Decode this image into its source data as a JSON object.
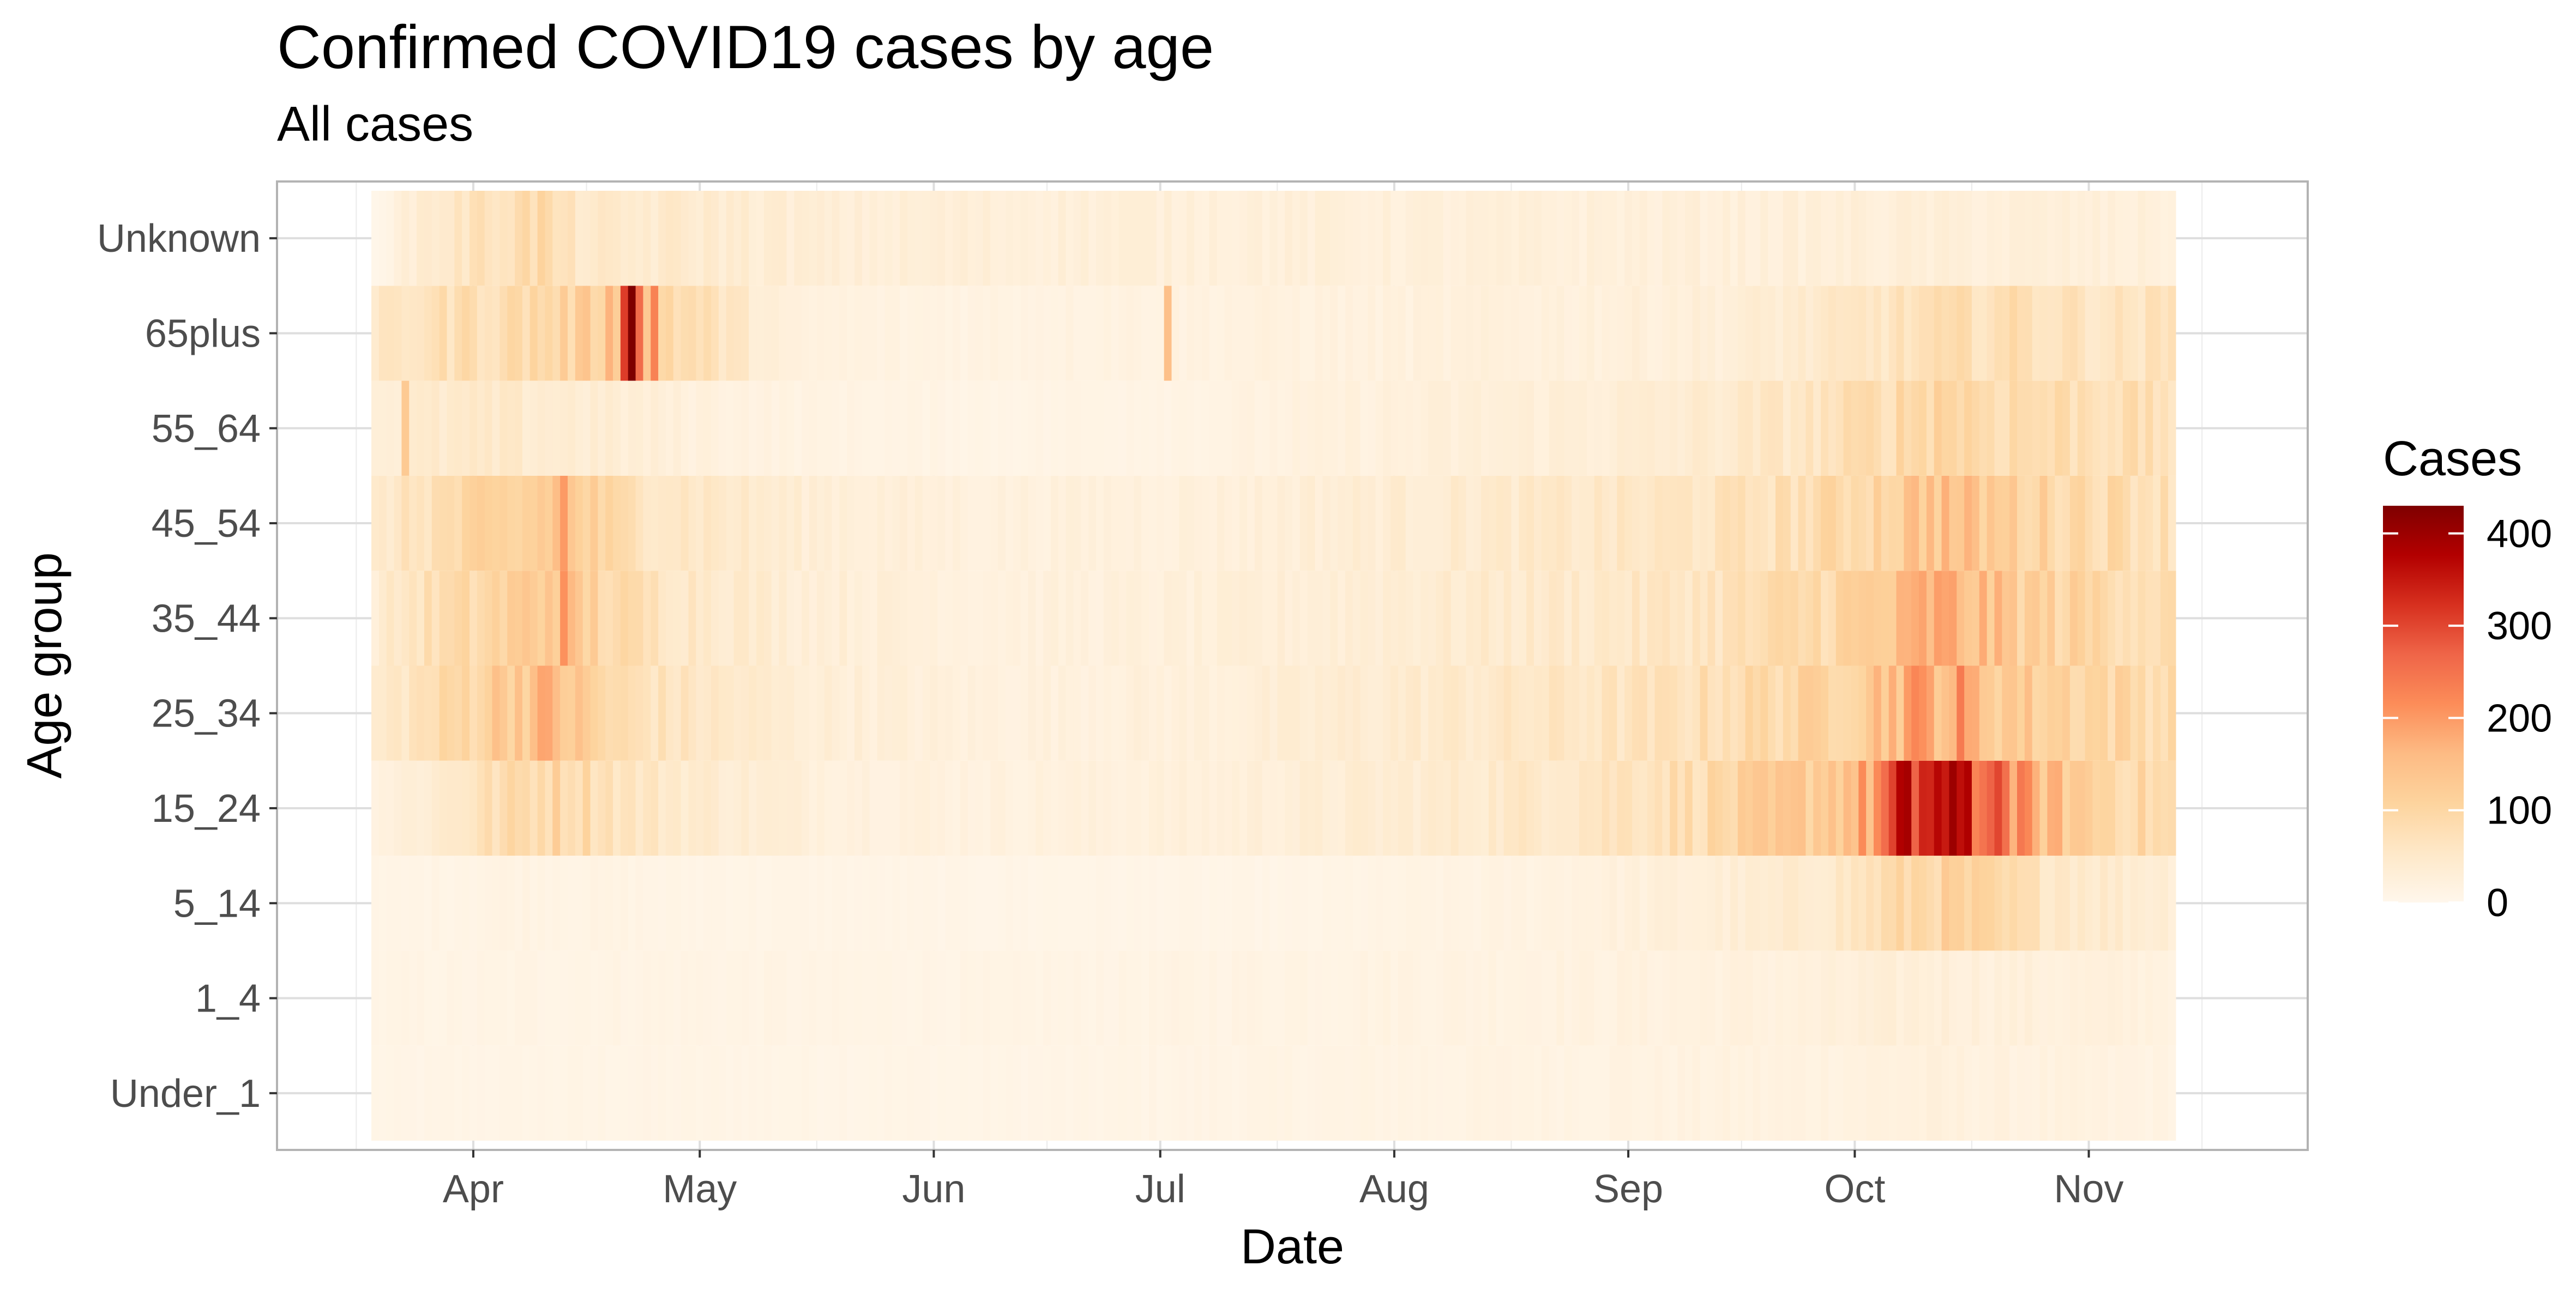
{
  "chart_data": {
    "type": "heatmap",
    "title": "Confirmed COVID19 cases by age",
    "subtitle": "All cases",
    "xlabel": "Date",
    "ylabel": "Age group",
    "x_range": [
      "2020-03-06",
      "2020-11-30"
    ],
    "x_ticks": [
      {
        "date": "2020-04-01",
        "label": "Apr"
      },
      {
        "date": "2020-05-01",
        "label": "May"
      },
      {
        "date": "2020-06-01",
        "label": "Jun"
      },
      {
        "date": "2020-07-01",
        "label": "Jul"
      },
      {
        "date": "2020-08-01",
        "label": "Aug"
      },
      {
        "date": "2020-09-01",
        "label": "Sep"
      },
      {
        "date": "2020-10-01",
        "label": "Oct"
      },
      {
        "date": "2020-11-01",
        "label": "Nov"
      }
    ],
    "age_groups": [
      "Under_1",
      "1_4",
      "5_14",
      "15_24",
      "25_34",
      "35_44",
      "45_54",
      "55_64",
      "65plus",
      "Unknown"
    ],
    "date_range": [
      "2020-03-19",
      "2020-11-12"
    ],
    "grid": true,
    "legend": {
      "title": "Cases",
      "position": "right",
      "ticks": [
        0,
        100,
        200,
        300,
        400
      ],
      "max": 430,
      "colors": [
        "#fff7ec",
        "#fee8c8",
        "#fdd49e",
        "#fdbb84",
        "#fc8d59",
        "#ef6548",
        "#d7301f",
        "#b30000",
        "#7f0000"
      ]
    },
    "profiles": {
      "Unknown": [
        [
          0,
          5
        ],
        [
          6,
          40
        ],
        [
          12,
          60
        ],
        [
          18,
          80
        ],
        [
          22,
          90
        ],
        [
          25,
          60
        ],
        [
          32,
          40
        ],
        [
          40,
          45
        ],
        [
          60,
          30
        ],
        [
          100,
          28
        ],
        [
          150,
          25
        ],
        [
          200,
          28
        ],
        [
          238,
          25
        ]
      ],
      "65plus": [
        [
          0,
          45
        ],
        [
          6,
          70
        ],
        [
          12,
          80
        ],
        [
          18,
          85
        ],
        [
          24,
          100
        ],
        [
          28,
          110
        ],
        [
          32,
          150
        ],
        [
          34,
          160
        ],
        [
          36,
          120
        ],
        [
          40,
          90
        ],
        [
          47,
          55
        ],
        [
          55,
          20
        ],
        [
          70,
          15
        ],
        [
          100,
          18
        ],
        [
          130,
          20
        ],
        [
          160,
          25
        ],
        [
          180,
          30
        ],
        [
          195,
          50
        ],
        [
          205,
          70
        ],
        [
          215,
          80
        ],
        [
          222,
          70
        ],
        [
          230,
          60
        ],
        [
          238,
          65
        ]
      ],
      "55_64": [
        [
          0,
          30
        ],
        [
          6,
          40
        ],
        [
          12,
          45
        ],
        [
          18,
          45
        ],
        [
          24,
          40
        ],
        [
          30,
          35
        ],
        [
          40,
          25
        ],
        [
          55,
          15
        ],
        [
          80,
          10
        ],
        [
          110,
          14
        ],
        [
          140,
          25
        ],
        [
          170,
          35
        ],
        [
          180,
          45
        ],
        [
          190,
          60
        ],
        [
          200,
          85
        ],
        [
          208,
          110
        ],
        [
          213,
          90
        ],
        [
          220,
          85
        ],
        [
          230,
          80
        ],
        [
          238,
          70
        ]
      ],
      "45_54": [
        [
          0,
          40
        ],
        [
          6,
          70
        ],
        [
          12,
          90
        ],
        [
          18,
          100
        ],
        [
          22,
          120
        ],
        [
          24,
          150
        ],
        [
          26,
          130
        ],
        [
          32,
          80
        ],
        [
          40,
          60
        ],
        [
          55,
          35
        ],
        [
          80,
          22
        ],
        [
          110,
          25
        ],
        [
          140,
          40
        ],
        [
          170,
          55
        ],
        [
          180,
          65
        ],
        [
          190,
          80
        ],
        [
          200,
          110
        ],
        [
          206,
          150
        ],
        [
          212,
          130
        ],
        [
          220,
          105
        ],
        [
          230,
          90
        ],
        [
          238,
          75
        ]
      ],
      "35_44": [
        [
          0,
          35
        ],
        [
          6,
          70
        ],
        [
          12,
          85
        ],
        [
          18,
          110
        ],
        [
          22,
          130
        ],
        [
          24,
          160
        ],
        [
          26,
          130
        ],
        [
          32,
          85
        ],
        [
          40,
          60
        ],
        [
          55,
          35
        ],
        [
          80,
          22
        ],
        [
          110,
          25
        ],
        [
          140,
          40
        ],
        [
          170,
          55
        ],
        [
          180,
          70
        ],
        [
          190,
          90
        ],
        [
          200,
          120
        ],
        [
          206,
          170
        ],
        [
          212,
          150
        ],
        [
          220,
          110
        ],
        [
          230,
          95
        ],
        [
          238,
          80
        ]
      ],
      "25_34": [
        [
          0,
          40
        ],
        [
          6,
          70
        ],
        [
          12,
          100
        ],
        [
          18,
          140
        ],
        [
          22,
          150
        ],
        [
          24,
          155
        ],
        [
          26,
          130
        ],
        [
          32,
          80
        ],
        [
          40,
          60
        ],
        [
          55,
          35
        ],
        [
          80,
          22
        ],
        [
          110,
          25
        ],
        [
          140,
          45
        ],
        [
          170,
          65
        ],
        [
          180,
          85
        ],
        [
          190,
          100
        ],
        [
          198,
          140
        ],
        [
          204,
          180
        ],
        [
          210,
          170
        ],
        [
          214,
          140
        ],
        [
          220,
          120
        ],
        [
          230,
          100
        ],
        [
          238,
          85
        ]
      ],
      "15_24": [
        [
          0,
          20
        ],
        [
          8,
          40
        ],
        [
          14,
          70
        ],
        [
          20,
          90
        ],
        [
          24,
          100
        ],
        [
          28,
          90
        ],
        [
          34,
          60
        ],
        [
          45,
          40
        ],
        [
          60,
          25
        ],
        [
          80,
          20
        ],
        [
          110,
          25
        ],
        [
          140,
          40
        ],
        [
          160,
          60
        ],
        [
          175,
          85
        ],
        [
          185,
          110
        ],
        [
          193,
          140
        ],
        [
          198,
          180
        ],
        [
          202,
          300
        ],
        [
          206,
          360
        ],
        [
          208,
          330
        ],
        [
          212,
          280
        ],
        [
          216,
          220
        ],
        [
          220,
          160
        ],
        [
          228,
          110
        ],
        [
          238,
          80
        ]
      ],
      "5_14": [
        [
          0,
          8
        ],
        [
          20,
          15
        ],
        [
          40,
          10
        ],
        [
          80,
          8
        ],
        [
          120,
          8
        ],
        [
          150,
          15
        ],
        [
          170,
          25
        ],
        [
          185,
          35
        ],
        [
          195,
          55
        ],
        [
          200,
          80
        ],
        [
          206,
          105
        ],
        [
          212,
          95
        ],
        [
          220,
          65
        ],
        [
          230,
          45
        ],
        [
          238,
          35
        ]
      ],
      "1_4": [
        [
          0,
          10
        ],
        [
          40,
          12
        ],
        [
          80,
          10
        ],
        [
          120,
          14
        ],
        [
          160,
          18
        ],
        [
          190,
          22
        ],
        [
          205,
          30
        ],
        [
          215,
          25
        ],
        [
          238,
          20
        ]
      ],
      "Under_1": [
        [
          0,
          8
        ],
        [
          40,
          10
        ],
        [
          80,
          8
        ],
        [
          120,
          12
        ],
        [
          160,
          15
        ],
        [
          190,
          18
        ],
        [
          205,
          22
        ],
        [
          220,
          18
        ],
        [
          238,
          14
        ]
      ]
    },
    "spikes": [
      {
        "group": "65plus",
        "date": "2020-04-22",
        "value": 430
      },
      {
        "group": "65plus",
        "date": "2020-04-21",
        "value": 310
      },
      {
        "group": "65plus",
        "date": "2020-04-23",
        "value": 260
      },
      {
        "group": "65plus",
        "date": "2020-07-02",
        "value": 150
      },
      {
        "group": "65plus",
        "date": "2020-04-25",
        "value": 230
      },
      {
        "group": "55_64",
        "date": "2020-03-23",
        "value": 130
      },
      {
        "group": "45_54",
        "date": "2020-04-13",
        "value": 200
      },
      {
        "group": "35_44",
        "date": "2020-04-13",
        "value": 210
      },
      {
        "group": "15_24",
        "date": "2020-10-14",
        "value": 400
      },
      {
        "group": "15_24",
        "date": "2020-10-16",
        "value": 380
      },
      {
        "group": "15_24",
        "date": "2020-10-09",
        "value": 270
      },
      {
        "group": "15_24",
        "date": "2020-10-20",
        "value": 300
      },
      {
        "group": "25_34",
        "date": "2020-10-15",
        "value": 240
      },
      {
        "group": "25_34",
        "date": "2020-10-08",
        "value": 200
      }
    ]
  }
}
